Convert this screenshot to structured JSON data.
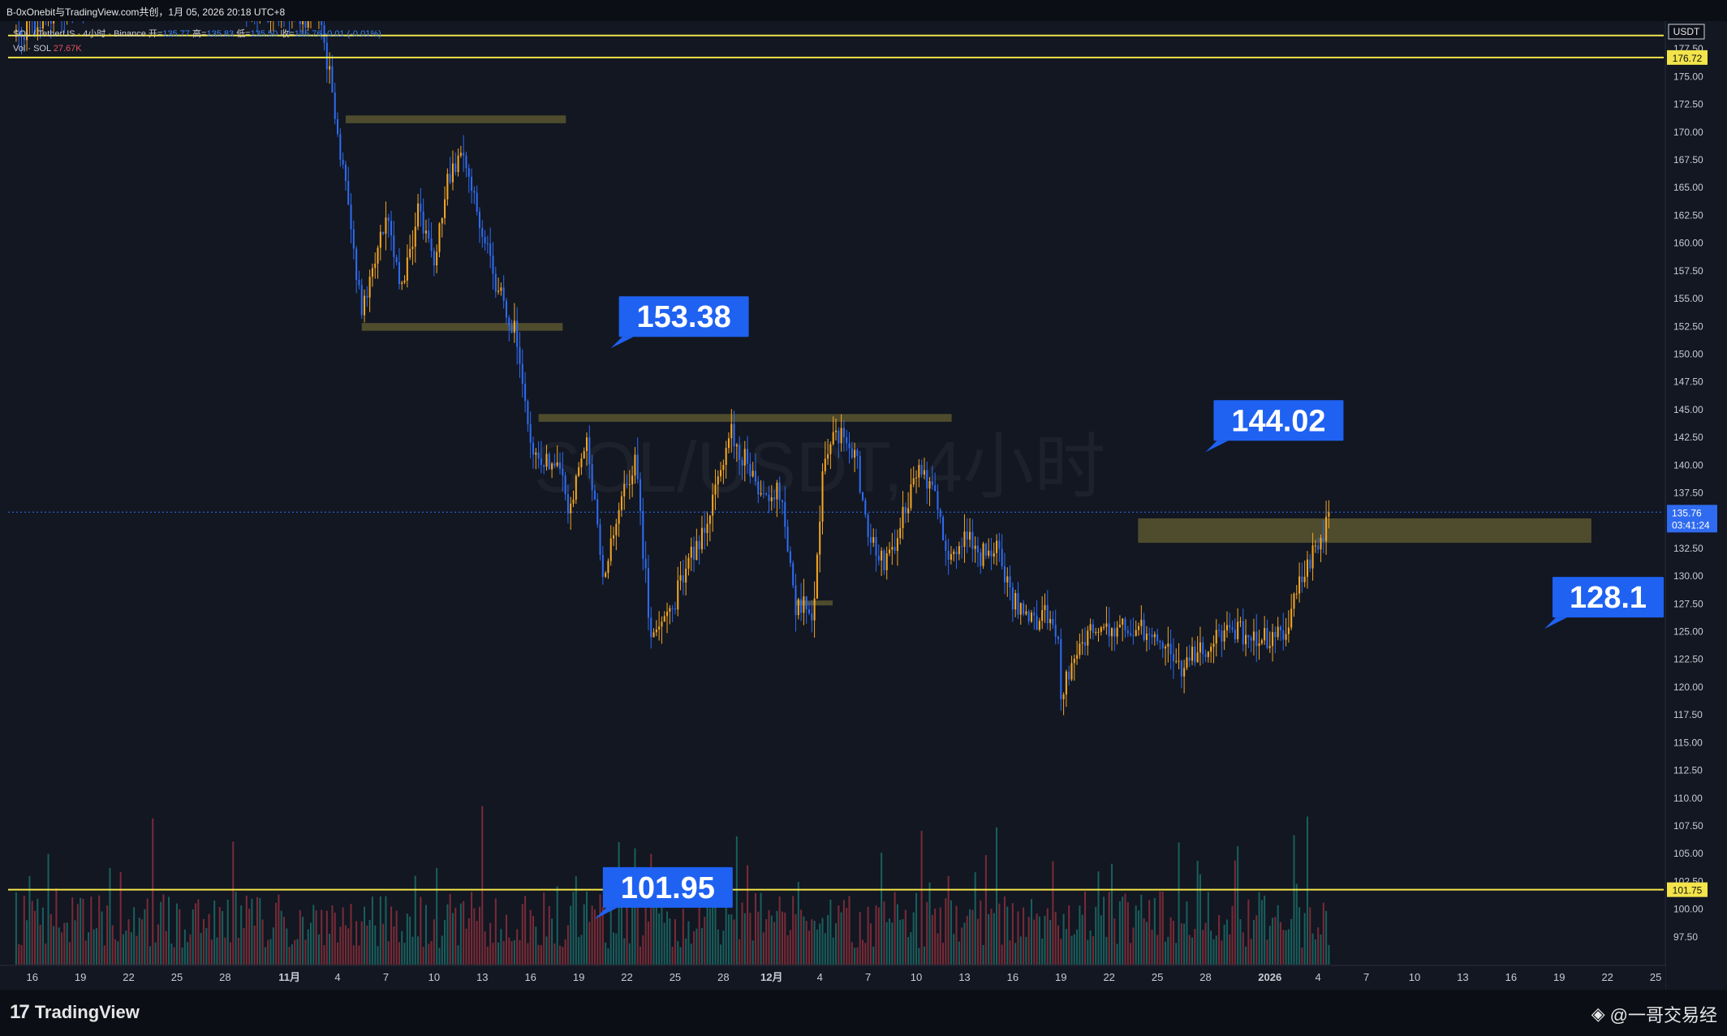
{
  "window": {
    "title": "B-0xOnebit与TradingView.com共创，1月 05, 2026 20:18 UTC+8"
  },
  "legend": {
    "symbol_line": "SOL / TetherUS · 4小时 · Binance",
    "ohlc": [
      {
        "label": "开=",
        "value": "135.77"
      },
      {
        "label": "高=",
        "value": "135.83"
      },
      {
        "label": "低=",
        "value": "135.50"
      },
      {
        "label": "收=",
        "value": "135.76"
      }
    ],
    "change": "-0.01 (-0.01%)",
    "vol_label": "Vol · SOL",
    "vol_value": "27.67K"
  },
  "watermark_text": "SOL/USDT, 4小时",
  "footer": {
    "brand": "TradingView",
    "author": "@一哥交易经"
  },
  "colors": {
    "background": "#121722",
    "up": "#f5a623",
    "down": "#2f6bf0",
    "vol_up": "#1b6b66",
    "vol_down": "#8b2f3a",
    "hline": "#f2e44a",
    "zone": "#5a5630",
    "label_bg": "#1f62f2"
  },
  "chart_data": {
    "type": "candlestick",
    "title": "SOL / TetherUS · 4小时 · Binance",
    "currency_label": "USDT",
    "y_ticks": [
      177.5,
      175,
      172.5,
      170,
      167.5,
      165,
      162.5,
      160,
      157.5,
      155,
      152.5,
      150,
      147.5,
      145,
      142.5,
      140,
      137.5,
      135,
      132.5,
      130,
      127.5,
      125,
      122.5,
      120,
      117.5,
      115,
      112.5,
      110,
      107.5,
      105,
      102.5,
      100,
      97.5
    ],
    "ylim": [
      95.0,
      180.0
    ],
    "x_ticks": [
      {
        "label": "16",
        "day": -16
      },
      {
        "label": "19",
        "day": -13
      },
      {
        "label": "22",
        "day": -10
      },
      {
        "label": "25",
        "day": -7
      },
      {
        "label": "28",
        "day": -4
      },
      {
        "label": "11月",
        "day": 0
      },
      {
        "label": "4",
        "day": 3
      },
      {
        "label": "7",
        "day": 6
      },
      {
        "label": "10",
        "day": 9
      },
      {
        "label": "13",
        "day": 12
      },
      {
        "label": "16",
        "day": 15
      },
      {
        "label": "19",
        "day": 18
      },
      {
        "label": "22",
        "day": 21
      },
      {
        "label": "25",
        "day": 24
      },
      {
        "label": "28",
        "day": 27
      },
      {
        "label": "12月",
        "day": 30
      },
      {
        "label": "4",
        "day": 33
      },
      {
        "label": "7",
        "day": 36
      },
      {
        "label": "10",
        "day": 39
      },
      {
        "label": "13",
        "day": 42
      },
      {
        "label": "16",
        "day": 45
      },
      {
        "label": "19",
        "day": 48
      },
      {
        "label": "22",
        "day": 51
      },
      {
        "label": "25",
        "day": 54
      },
      {
        "label": "28",
        "day": 57
      },
      {
        "label": "2026",
        "day": 61
      },
      {
        "label": "4",
        "day": 64
      },
      {
        "label": "7",
        "day": 67
      },
      {
        "label": "10",
        "day": 70
      },
      {
        "label": "13",
        "day": 73
      },
      {
        "label": "16",
        "day": 76
      },
      {
        "label": "19",
        "day": 79
      },
      {
        "label": "22",
        "day": 82
      },
      {
        "label": "25",
        "day": 85
      }
    ],
    "xlim_days": [
      -17.5,
      85.5
    ],
    "candle_days": [
      -17.0,
      64.8
    ],
    "price_path": [
      [
        -17.0,
        179.0
      ],
      [
        -14.0,
        181.0
      ],
      [
        -10.0,
        183.0
      ],
      [
        -6.0,
        186.0
      ],
      [
        -2.0,
        181.0
      ],
      [
        0.0,
        181.0
      ],
      [
        2.0,
        180.0
      ],
      [
        3.5,
        165.0
      ],
      [
        4.5,
        154.0
      ],
      [
        6.0,
        162.0
      ],
      [
        7.0,
        156.0
      ],
      [
        8.0,
        163.0
      ],
      [
        9.0,
        158.0
      ],
      [
        9.8,
        166.0
      ],
      [
        10.8,
        168.0
      ],
      [
        12.0,
        161.0
      ],
      [
        13.0,
        155.5
      ],
      [
        14.0,
        152.5
      ],
      [
        15.0,
        141.0
      ],
      [
        16.5,
        140.0
      ],
      [
        17.5,
        136.0
      ],
      [
        18.5,
        142.5
      ],
      [
        19.5,
        130.0
      ],
      [
        20.5,
        135.5
      ],
      [
        21.5,
        141.0
      ],
      [
        22.5,
        124.0
      ],
      [
        23.0,
        126.0
      ],
      [
        24.0,
        128.0
      ],
      [
        25.5,
        133.5
      ],
      [
        26.5,
        137.5
      ],
      [
        27.5,
        143.0
      ],
      [
        28.5,
        140.0
      ],
      [
        29.5,
        137.0
      ],
      [
        30.5,
        137.5
      ],
      [
        31.5,
        127.0
      ],
      [
        32.0,
        127.5
      ],
      [
        32.5,
        125.5
      ],
      [
        33.2,
        139.5
      ],
      [
        34.0,
        143.0
      ],
      [
        35.2,
        141.0
      ],
      [
        36.0,
        134.0
      ],
      [
        37.0,
        131.0
      ],
      [
        38.0,
        134.5
      ],
      [
        39.0,
        139.0
      ],
      [
        40.0,
        138.5
      ],
      [
        41.0,
        130.5
      ],
      [
        42.0,
        133.5
      ],
      [
        43.0,
        132.0
      ],
      [
        44.0,
        133.0
      ],
      [
        45.0,
        128.0
      ],
      [
        46.0,
        125.5
      ],
      [
        47.0,
        127.0
      ],
      [
        47.8,
        124.0
      ],
      [
        48.0,
        119.5
      ],
      [
        48.8,
        123.0
      ],
      [
        50.0,
        125.5
      ],
      [
        51.0,
        125.0
      ],
      [
        52.0,
        125.5
      ],
      [
        53.0,
        125.0
      ],
      [
        54.5,
        123.0
      ],
      [
        55.5,
        122.0
      ],
      [
        56.5,
        123.0
      ],
      [
        58.0,
        124.5
      ],
      [
        59.0,
        125.0
      ],
      [
        60.0,
        124.0
      ],
      [
        61.0,
        124.5
      ],
      [
        62.0,
        125.0
      ],
      [
        63.0,
        130.0
      ],
      [
        64.0,
        133.0
      ],
      [
        64.8,
        135.5
      ]
    ],
    "current_price": 135.76,
    "countdown": "03:41:24",
    "horizontal_lines": [
      {
        "price": 176.72,
        "label": "176.72"
      },
      {
        "price": 101.75,
        "label": "101.75"
      }
    ],
    "top_line": {
      "price": 178.7
    },
    "zones": [
      {
        "price_low": 170.8,
        "price_high": 171.5,
        "day_start": 3.5,
        "day_end": 17.2
      },
      {
        "price_low": 152.1,
        "price_high": 152.8,
        "day_start": 4.5,
        "day_end": 17.0
      },
      {
        "price_low": 143.9,
        "price_high": 144.6,
        "day_start": 15.5,
        "day_end": 41.2
      },
      {
        "price_low": 127.4,
        "price_high": 127.8,
        "day_start": 31.5,
        "day_end": 33.8
      },
      {
        "price_low": 133.0,
        "price_high": 135.2,
        "day_start": 52.8,
        "day_end": 81.0
      }
    ],
    "price_labels": [
      {
        "text": "153.38",
        "price": 153.38,
        "day": 20.5
      },
      {
        "text": "144.02",
        "price": 144.02,
        "day": 57.5
      },
      {
        "text": "128.1",
        "price": 128.1,
        "day": 82.5
      },
      {
        "text": "101.95",
        "price": 101.95,
        "day": 19.5
      }
    ]
  }
}
